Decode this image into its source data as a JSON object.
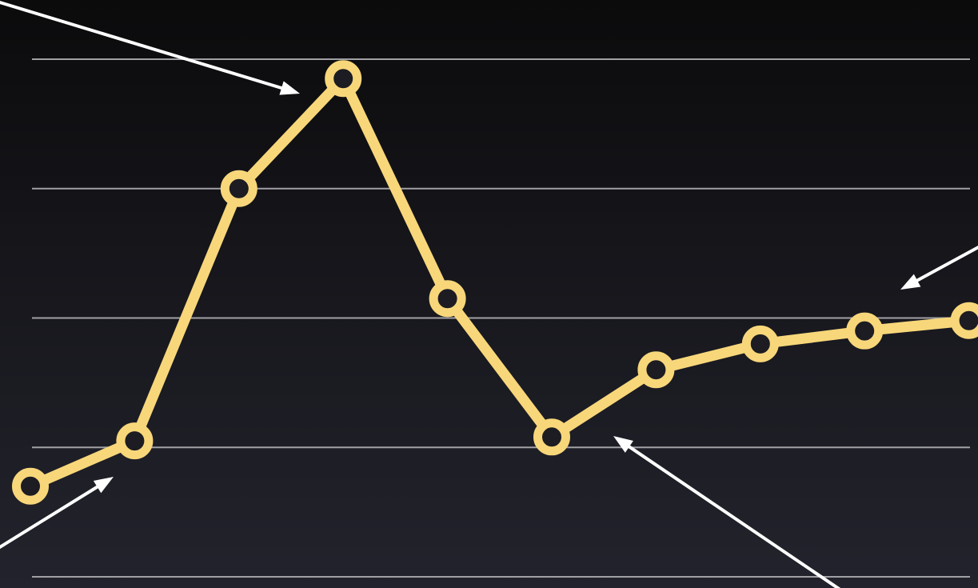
{
  "chart_data": {
    "type": "line",
    "title": "",
    "xlabel": "",
    "ylabel": "",
    "grid": true,
    "gridlines": [
      0,
      1,
      2,
      3,
      4
    ],
    "ylim": [
      0,
      4
    ],
    "x": [
      1,
      2,
      3,
      4,
      5,
      6,
      7,
      8,
      9,
      10
    ],
    "series": [
      {
        "values": [
          0.7,
          1.05,
          3.0,
          3.85,
          2.15,
          1.08,
          1.6,
          1.8,
          1.9,
          1.98
        ]
      }
    ],
    "annotations": [
      {
        "kind": "arrow",
        "points_to_index": 3
      },
      {
        "kind": "arrow",
        "points_to_index": 1
      },
      {
        "kind": "arrow",
        "points_to_index": 5
      },
      {
        "kind": "arrow",
        "points_to_index": 9
      }
    ],
    "colors": {
      "line": "#f8d77a",
      "marker_center": "#1c1c22",
      "grid": "#a0a0a5",
      "arrow": "#ffffff"
    }
  }
}
